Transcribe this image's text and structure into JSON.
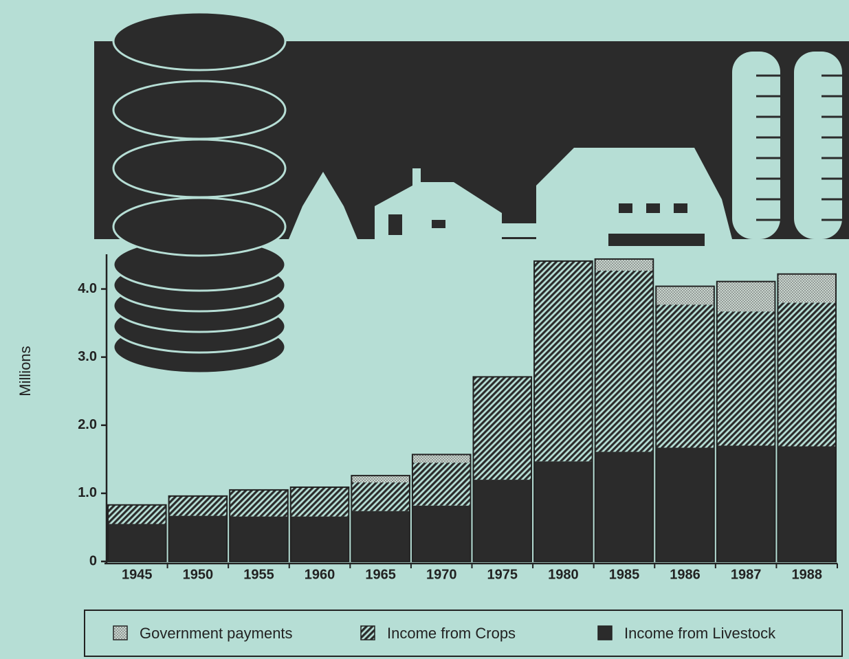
{
  "chart_data": {
    "type": "stacked-bar",
    "y_label": "Millions",
    "categories": [
      "1945",
      "1950",
      "1955",
      "1960",
      "1965",
      "1970",
      "1975",
      "1980",
      "1985",
      "1986",
      "1987",
      "1988"
    ],
    "series": [
      {
        "name": "Government payments",
        "color": "#c9d6cf",
        "pattern": "dots",
        "values": [
          0,
          0,
          0,
          0,
          0.1,
          0.12,
          0,
          0,
          0.17,
          0.27,
          0.44,
          0.42
        ]
      },
      {
        "name": "Income from Crops",
        "color": "#2b2b2b",
        "pattern": "hatch",
        "values": [
          0.28,
          0.29,
          0.39,
          0.43,
          0.42,
          0.63,
          1.51,
          2.94,
          2.66,
          2.1,
          1.97,
          2.11
        ]
      },
      {
        "name": "Income from Livestock",
        "color": "#2b2b2b",
        "pattern": "solid",
        "values": [
          0.55,
          0.67,
          0.66,
          0.66,
          0.74,
          0.82,
          1.2,
          1.47,
          1.61,
          1.67,
          1.7,
          1.69
        ]
      }
    ],
    "ylim": [
      0,
      4.5
    ],
    "yticks": [
      0,
      {
        "value": 1,
        "label": "1.0"
      },
      {
        "value": 2,
        "label": "2.0"
      },
      {
        "value": 3,
        "label": "3.0"
      },
      {
        "value": 4,
        "label": "4.0"
      }
    ]
  }
}
